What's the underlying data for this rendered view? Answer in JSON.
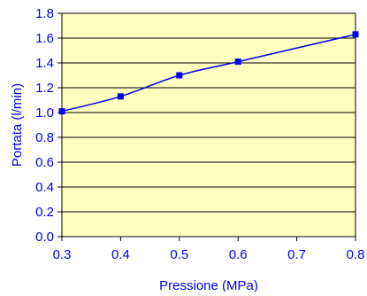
{
  "chart_data": {
    "type": "line",
    "title": "",
    "xlabel": "Pressione (MPa)",
    "ylabel": "Portata (l/min)",
    "xlim": [
      0.3,
      0.8
    ],
    "ylim": [
      0.0,
      1.8
    ],
    "x_ticks": [
      "0.3",
      "0.4",
      "0.5",
      "0.6",
      "0.7",
      "0.8"
    ],
    "x_tick_values": [
      0.3,
      0.4,
      0.5,
      0.6,
      0.7,
      0.8
    ],
    "y_ticks": [
      "0.0",
      "0.2",
      "0.4",
      "0.6",
      "0.8",
      "1.0",
      "1.2",
      "1.4",
      "1.6",
      "1.8"
    ],
    "y_tick_values": [
      0.0,
      0.2,
      0.4,
      0.6,
      0.8,
      1.0,
      1.2,
      1.4,
      1.6,
      1.8
    ],
    "grid": "horizontal",
    "legend": "none",
    "series": [
      {
        "x": [
          0.3,
          0.4,
          0.5,
          0.6,
          0.8
        ],
        "y": [
          1.01,
          1.13,
          1.3,
          1.41,
          1.63
        ],
        "marker": "square",
        "smooth": true
      }
    ],
    "colors": {
      "plot_background": "#FFFFC0",
      "series": "#0000EE",
      "axis": "#000000",
      "grid": "#000000",
      "text": "#0000EE"
    }
  }
}
